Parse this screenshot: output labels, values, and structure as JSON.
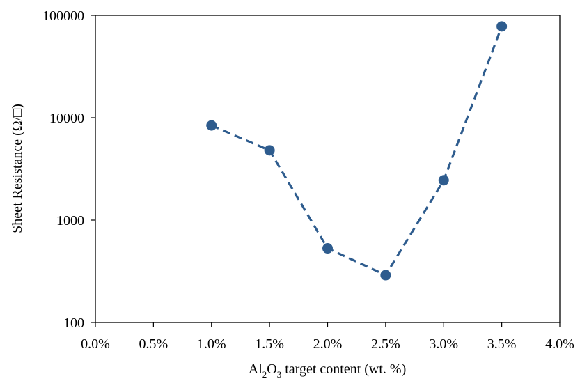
{
  "chart_data": {
    "type": "line",
    "title": "",
    "xlabel": {
      "pre": "Al",
      "sub1": "2",
      "mid": "O",
      "sub2": "3",
      "post": " target content  (wt. %)"
    },
    "ylabel": "Sheet Resistance  (Ω/□)",
    "x_scale": "linear",
    "y_scale": "log",
    "xlim": [
      0.0,
      4.0
    ],
    "ylim": [
      100,
      100000
    ],
    "x_ticks": [
      0.0,
      0.5,
      1.0,
      1.5,
      2.0,
      2.5,
      3.0,
      3.5,
      4.0
    ],
    "x_tick_labels": [
      "0.0%",
      "0.5%",
      "1.0%",
      "1.5%",
      "2.0%",
      "2.5%",
      "3.0%",
      "3.5%",
      "4.0%"
    ],
    "y_ticks": [
      100,
      1000,
      10000,
      100000
    ],
    "y_tick_labels": [
      "100",
      "1000",
      "10000",
      "100000"
    ],
    "grid": false,
    "series": [
      {
        "name": "",
        "color": "#2e5c8e",
        "line_style": "dashed",
        "marker": "circle",
        "x": [
          1.0,
          1.5,
          2.0,
          2.5,
          3.0,
          3.5
        ],
        "y": [
          8400,
          4800,
          530,
          290,
          2450,
          78000
        ]
      }
    ]
  }
}
